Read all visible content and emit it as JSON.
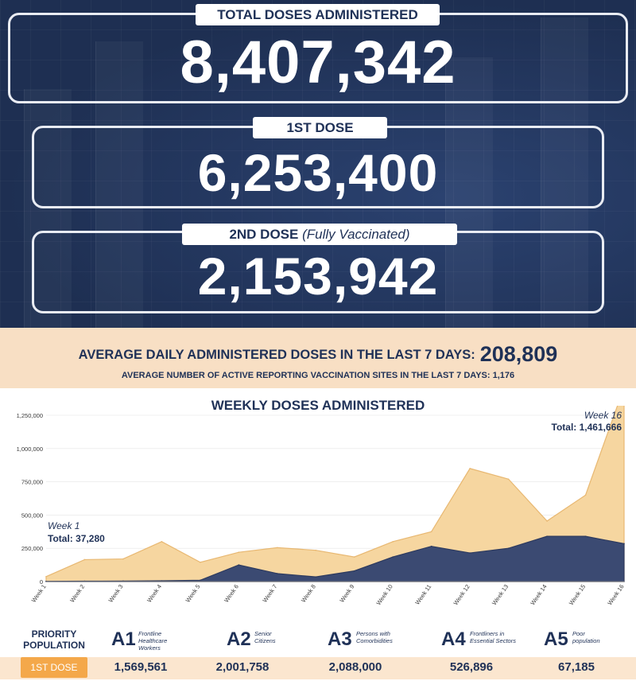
{
  "totals": {
    "total_label": "TOTAL DOSES ADMINISTERED",
    "total_value": "8,407,342",
    "first_label": "1ST DOSE",
    "first_value": "6,253,400",
    "second_label": "2ND DOSE",
    "second_label_note": "(Fully Vaccinated)",
    "second_value": "2,153,942"
  },
  "averages": {
    "daily_label": "AVERAGE DAILY ADMINISTERED DOSES IN THE LAST 7 DAYS:",
    "daily_value": "208,809",
    "sites_label": "AVERAGE NUMBER OF ACTIVE REPORTING VACCINATION SITES IN THE LAST 7 DAYS: 1,176"
  },
  "chart_data": {
    "type": "area",
    "title": "WEEKLY DOSES ADMINISTERED",
    "categories": [
      "Week 1",
      "Week 2",
      "Week 3",
      "Week 4",
      "Week 5",
      "Week 6",
      "Week 7",
      "Week 8",
      "Week 9",
      "Week 10",
      "Week 11",
      "Week 12",
      "Week 13",
      "Week 14",
      "Week 15",
      "Week 16"
    ],
    "series": [
      {
        "values": [
          37280,
          165000,
          170000,
          300000,
          145000,
          220000,
          255000,
          235000,
          185000,
          300000,
          375000,
          850000,
          770000,
          455000,
          650000,
          1461666
        ],
        "color": "#f6d6a0"
      },
      {
        "values": [
          2000,
          3000,
          4000,
          6000,
          10000,
          125000,
          60000,
          35000,
          80000,
          185000,
          265000,
          215000,
          250000,
          340000,
          340000,
          285000
        ],
        "color": "#3b4a72"
      }
    ],
    "yticks": [
      "0",
      "250,000",
      "500,000",
      "750,000",
      "1,000,000",
      "1,250,000"
    ],
    "ylim": [
      0,
      1250000
    ],
    "annotations": {
      "first_week": "Week 1",
      "first_total": "Total: 37,280",
      "last_week": "Week 16",
      "last_total": "Total: 1,461,666"
    }
  },
  "priority": {
    "label": "PRIORITY POPULATION",
    "row_label": "1ST DOSE",
    "groups": [
      {
        "code": "A1",
        "desc": "Frontline Healthcare Workers",
        "value": "1,569,561"
      },
      {
        "code": "A2",
        "desc": "Senior Citizens",
        "value": "2,001,758"
      },
      {
        "code": "A3",
        "desc": "Persons with Comorbidities",
        "value": "2,088,000"
      },
      {
        "code": "A4",
        "desc": "Frontliners in Essential Sectors",
        "value": "526,896"
      },
      {
        "code": "A5",
        "desc": "Poor population",
        "value": "67,185"
      }
    ]
  }
}
